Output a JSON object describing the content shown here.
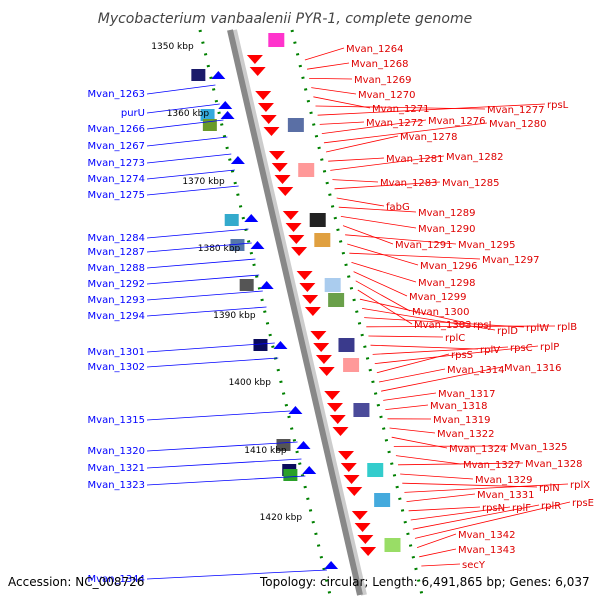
{
  "title": "Mycobacterium vanbaalenii PYR-1, complete genome",
  "footer": {
    "accession": "Accession: NC_008726",
    "info": "Topology: circular; Length: 6,491,865 bp; Genes: 6,037"
  },
  "colors": {
    "forward": "#ff0000",
    "reverse": "#0000ff",
    "backbone": "#888888",
    "ticks": "#008000"
  },
  "kbp_labels": [
    "1350 kbp",
    "1360 kbp",
    "1370 kbp",
    "1380 kbp",
    "1390 kbp",
    "1400 kbp",
    "1410 kbp",
    "1420 kbp"
  ],
  "left_genes": [
    "Mvan_1263",
    "purU",
    "Mvan_1266",
    "Mvan_1267",
    "Mvan_1273",
    "Mvan_1274",
    "Mvan_1275",
    "Mvan_1284",
    "Mvan_1287",
    "Mvan_1288",
    "Mvan_1292",
    "Mvan_1293",
    "Mvan_1294",
    "Mvan_1301",
    "Mvan_1302",
    "Mvan_1315",
    "Mvan_1320",
    "Mvan_1321",
    "Mvan_1323",
    "Mvan_1344"
  ],
  "right_genes": [
    "Mvan_1264",
    "Mvan_1268",
    "Mvan_1269",
    "Mvan_1270",
    "Mvan_1271",
    "Mvan_1277",
    "rpsL",
    "Mvan_1272",
    "Mvan_1276",
    "Mvan_1280",
    "Mvan_1278",
    "Mvan_1281",
    "Mvan_1282",
    "Mvan_1283",
    "Mvan_1285",
    "fabG",
    "Mvan_1289",
    "Mvan_1290",
    "Mvan_1291",
    "Mvan_1295",
    "Mvan_1296",
    "Mvan_1297",
    "Mvan_1298",
    "Mvan_1299",
    "Mvan_1300",
    "Mvan_1303",
    "rpsJ",
    "rplD",
    "rplW",
    "rplB",
    "rplC",
    "rplV",
    "rpsC",
    "rplP",
    "rpsS",
    "Mvan_1314",
    "Mvan_1316",
    "Mvan_1317",
    "Mvan_1318",
    "Mvan_1319",
    "Mvan_1322",
    "Mvan_1324",
    "Mvan_1325",
    "Mvan_1327",
    "Mvan_1328",
    "Mvan_1329",
    "rplN",
    "rplX",
    "Mvan_1331",
    "rpsN",
    "rplF",
    "rplR",
    "rpsE",
    "Mvan_1342",
    "Mvan_1343",
    "secY"
  ]
}
